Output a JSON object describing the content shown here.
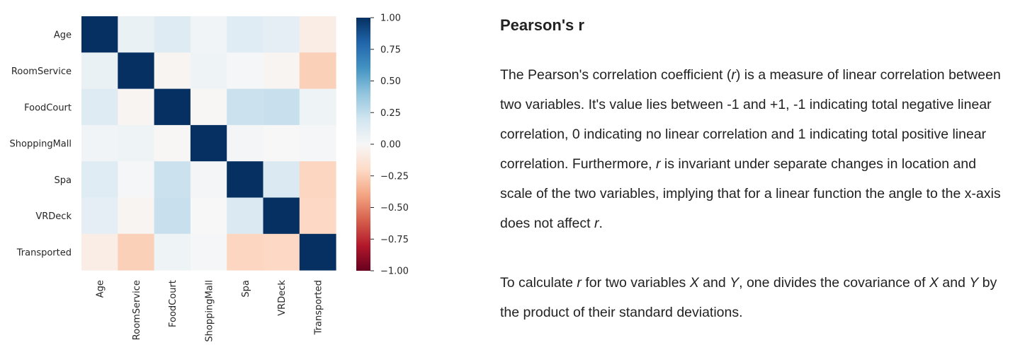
{
  "chart_data": {
    "type": "heatmap",
    "title": "",
    "xlabel": "",
    "ylabel": "",
    "row_labels": [
      "Age",
      "RoomService",
      "FoodCourt",
      "ShoppingMall",
      "Spa",
      "VRDeck",
      "Transported"
    ],
    "col_labels": [
      "Age",
      "RoomService",
      "FoodCourt",
      "ShoppingMall",
      "Spa",
      "VRDeck",
      "Transported"
    ],
    "values": [
      [
        1.0,
        0.07,
        0.13,
        0.03,
        0.12,
        0.1,
        -0.07
      ],
      [
        0.07,
        1.0,
        -0.02,
        0.05,
        0.01,
        -0.02,
        -0.24
      ],
      [
        0.13,
        -0.02,
        1.0,
        -0.01,
        0.22,
        0.23,
        0.05
      ],
      [
        0.03,
        0.05,
        -0.01,
        1.0,
        0.02,
        0.0,
        0.01
      ],
      [
        0.12,
        0.01,
        0.22,
        0.02,
        1.0,
        0.15,
        -0.22
      ],
      [
        0.1,
        -0.02,
        0.23,
        0.0,
        0.15,
        1.0,
        -0.21
      ],
      [
        -0.07,
        -0.24,
        0.05,
        0.01,
        -0.22,
        -0.21,
        1.0
      ]
    ],
    "colorbar": {
      "vmin": -1.0,
      "vmax": 1.0,
      "ticks": [
        "1.00",
        "0.75",
        "0.50",
        "0.25",
        "0.00",
        "−0.25",
        "−0.50",
        "−0.75",
        "−1.00"
      ],
      "tick_values": [
        1.0,
        0.75,
        0.5,
        0.25,
        0.0,
        -0.25,
        -0.5,
        -0.75,
        -1.0
      ],
      "colormap_stops": [
        "#67001f",
        "#b2182b",
        "#d6604d",
        "#f4a582",
        "#fddbc7",
        "#f7f7f7",
        "#d1e5f0",
        "#92c5de",
        "#4393c3",
        "#2166ac",
        "#053061"
      ]
    },
    "grid": false
  },
  "text": {
    "title": "Pearson's r",
    "p1": [
      {
        "t": "The Pearson's correlation coefficient ("
      },
      {
        "t": "r",
        "i": true
      },
      {
        "t": ") is a measure of linear correlation between two variables. It's value lies between -1 and +1, -1 indicating total negative linear correlation, 0 indicating no linear correlation and 1 indicating total positive linear correlation. Furthermore, "
      },
      {
        "t": "r",
        "i": true
      },
      {
        "t": " is invariant under separate changes in location and scale of the two variables, implying that for a linear function the angle to the x-axis does not affect "
      },
      {
        "t": "r",
        "i": true
      },
      {
        "t": "."
      }
    ],
    "p2": [
      {
        "t": "To calculate "
      },
      {
        "t": "r",
        "i": true
      },
      {
        "t": " for two variables "
      },
      {
        "t": "X",
        "i": true
      },
      {
        "t": " and "
      },
      {
        "t": "Y",
        "i": true
      },
      {
        "t": ", one divides the covariance of "
      },
      {
        "t": "X",
        "i": true
      },
      {
        "t": " and "
      },
      {
        "t": "Y",
        "i": true
      },
      {
        "t": " by the product of their standard deviations."
      }
    ]
  }
}
